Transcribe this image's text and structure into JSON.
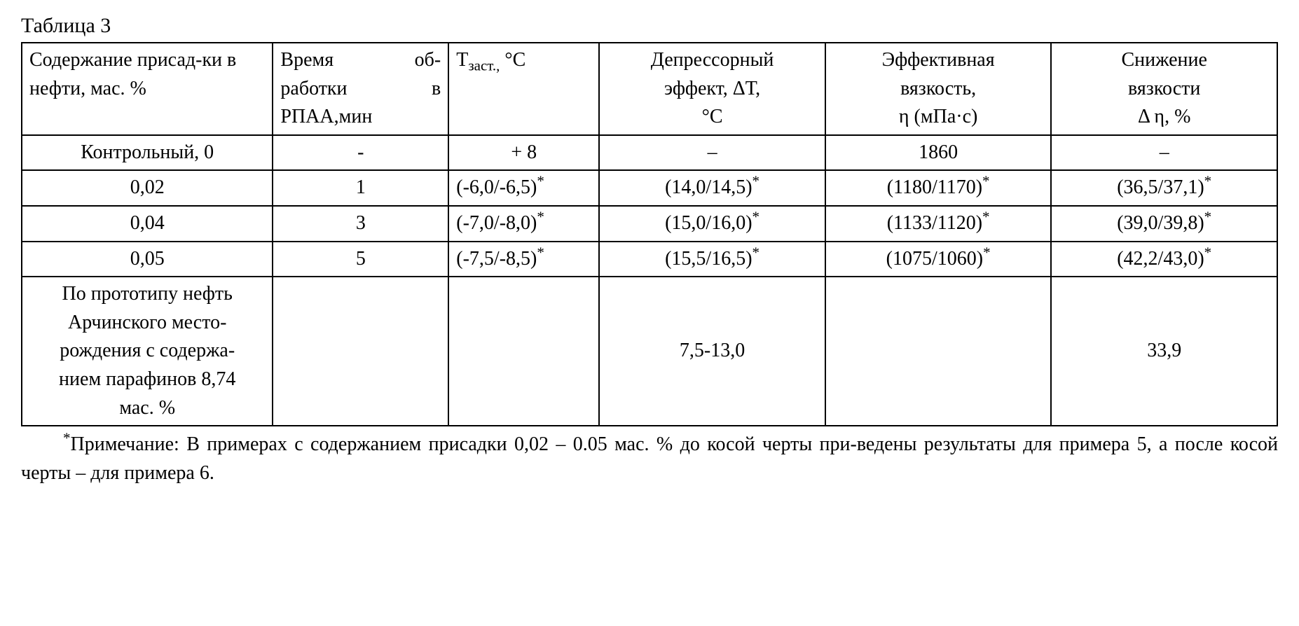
{
  "caption": "Таблица 3",
  "columns": {
    "c1": "Содержание присад-ки в нефти, мас. %",
    "c2_l1": "Время об-",
    "c2_l2": "работки в",
    "c2_l3": "РПАА,мин",
    "c3_prefix": "Т",
    "c3_sub": "заст.,",
    "c3_suffix": " °С",
    "c4_l1": "Депрессорный",
    "c4_l2": "эффект, ΔТ,",
    "c4_l3": "°С",
    "c5_l1": "Эффективная",
    "c5_l2": "вязкость,",
    "c5_l3": "η (мПа·с)",
    "c6_l1": "Снижение",
    "c6_l2": "вязкости",
    "c6_l3": "Δ η, %"
  },
  "rows": [
    {
      "c1": "Контрольный, 0",
      "c2": "-",
      "c3": "+ 8",
      "c3_sup": "",
      "c4": "–",
      "c4_sup": "",
      "c5": "1860",
      "c5_sup": "",
      "c6": "–",
      "c6_sup": ""
    },
    {
      "c1": "0,02",
      "c2": "1",
      "c3": "(-6,0/-6,5)",
      "c3_sup": "*",
      "c4": "(14,0/14,5)",
      "c4_sup": "*",
      "c5": "(1180/1170)",
      "c5_sup": "*",
      "c6": "(36,5/37,1)",
      "c6_sup": "*"
    },
    {
      "c1": "0,04",
      "c2": "3",
      "c3": "(-7,0/-8,0)",
      "c3_sup": "*",
      "c4": "(15,0/16,0)",
      "c4_sup": "*",
      "c5": "(1133/1120)",
      "c5_sup": "*",
      "c6": "(39,0/39,8)",
      "c6_sup": "*"
    },
    {
      "c1": "0,05",
      "c2": "5",
      "c3": "(-7,5/-8,5)",
      "c3_sup": "*",
      "c4": "(15,5/16,5)",
      "c4_sup": "*",
      "c5": "(1075/1060)",
      "c5_sup": "*",
      "c6": "(42,2/43,0)",
      "c6_sup": "*"
    }
  ],
  "proto": {
    "c1_l1": "По прототипу нефть",
    "c1_l2": "Арчинского место-",
    "c1_l3": "рождения с содержа-",
    "c1_l4": "нием парафинов 8,74",
    "c1_l5": "мас. %",
    "c4": "7,5-13,0",
    "c6": "33,9"
  },
  "footnote_sup": "*",
  "footnote": "Примечание: В примерах с содержанием присадки 0,02 – 0.05 мас. % до косой черты при-ведены результаты для примера 5, а после косой черты – для примера 6."
}
